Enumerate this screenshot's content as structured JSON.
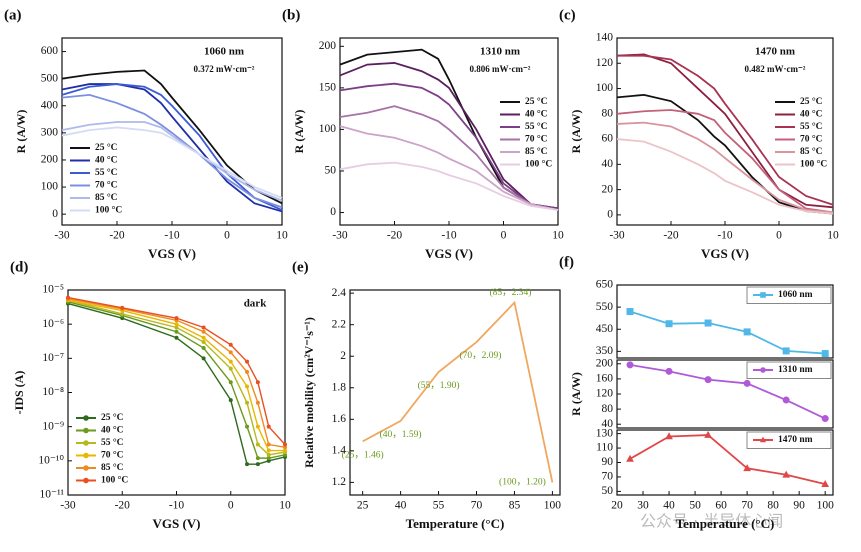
{
  "watermark": "公众号 · 半导体心闻",
  "chart_data": [
    {
      "type": "line",
      "panel": "(a)",
      "xlabel": "VGS (V)",
      "ylabel": "R (A/W)",
      "annotations": [
        "1060 nm",
        "0.372 mW·cm⁻²"
      ],
      "legend_loc": "lower left",
      "xlim": [
        -30,
        10
      ],
      "xticks": [
        -30,
        -20,
        -10,
        0,
        10
      ],
      "ylim": [
        -40,
        650
      ],
      "yticks": [
        0,
        100,
        200,
        300,
        400,
        500,
        600
      ],
      "x": [
        -30,
        -25,
        -20,
        -15,
        -12,
        -10,
        -5,
        0,
        5,
        10
      ],
      "series": [
        {
          "name": "25 °C",
          "color": "#111111",
          "values": [
            500,
            515,
            525,
            530,
            480,
            430,
            310,
            180,
            90,
            40
          ]
        },
        {
          "name": "40 °C",
          "color": "#1f2fa8",
          "values": [
            460,
            480,
            480,
            460,
            410,
            360,
            240,
            120,
            40,
            10
          ]
        },
        {
          "name": "55 °C",
          "color": "#3b5bd6",
          "values": [
            440,
            470,
            480,
            470,
            440,
            400,
            290,
            150,
            60,
            15
          ]
        },
        {
          "name": "70 °C",
          "color": "#7b8fe0",
          "values": [
            430,
            440,
            410,
            370,
            330,
            300,
            220,
            130,
            60,
            25
          ]
        },
        {
          "name": "85 °C",
          "color": "#aeb9ec",
          "values": [
            310,
            330,
            340,
            340,
            320,
            290,
            220,
            150,
            90,
            50
          ]
        },
        {
          "name": "100 °C",
          "color": "#d5dbf5",
          "values": [
            290,
            310,
            320,
            310,
            300,
            280,
            220,
            160,
            100,
            60
          ]
        }
      ]
    },
    {
      "type": "line",
      "panel": "(b)",
      "xlabel": "VGS (V)",
      "ylabel": "R (A/W)",
      "annotations": [
        "1310 nm",
        "0.806 mW·cm⁻²"
      ],
      "legend_loc": "center right",
      "xlim": [
        -30,
        10
      ],
      "xticks": [
        -30,
        -20,
        -10,
        0,
        10
      ],
      "ylim": [
        -15,
        210
      ],
      "yticks": [
        0,
        50,
        100,
        150,
        200
      ],
      "x": [
        -30,
        -25,
        -20,
        -15,
        -12,
        -10,
        -5,
        0,
        5,
        10
      ],
      "series": [
        {
          "name": "25 °C",
          "color": "#111111",
          "values": [
            178,
            190,
            193,
            196,
            185,
            160,
            90,
            30,
            10,
            5
          ]
        },
        {
          "name": "40 °C",
          "color": "#5a1f5e",
          "values": [
            165,
            178,
            180,
            170,
            160,
            150,
            100,
            40,
            10,
            5
          ]
        },
        {
          "name": "55 °C",
          "color": "#7b3f85",
          "values": [
            147,
            152,
            155,
            150,
            140,
            130,
            90,
            35,
            10,
            5
          ]
        },
        {
          "name": "70 °C",
          "color": "#a772a8",
          "values": [
            115,
            120,
            128,
            118,
            110,
            100,
            70,
            30,
            10,
            3
          ]
        },
        {
          "name": "85 °C",
          "color": "#cda3c8",
          "values": [
            104,
            95,
            90,
            80,
            72,
            65,
            50,
            25,
            10,
            3
          ]
        },
        {
          "name": "100 °C",
          "color": "#e6cde1",
          "values": [
            52,
            58,
            60,
            55,
            50,
            45,
            35,
            20,
            8,
            3
          ]
        }
      ]
    },
    {
      "type": "line",
      "panel": "(c)",
      "xlabel": "VGS (V)",
      "ylabel": "R (A/W)",
      "annotations": [
        "1470 nm",
        "0.482 mW·cm⁻²"
      ],
      "legend_loc": "center right",
      "xlim": [
        -30,
        10
      ],
      "xticks": [
        -30,
        -20,
        -10,
        0,
        10
      ],
      "ylim": [
        -8,
        140
      ],
      "yticks": [
        0,
        20,
        40,
        60,
        80,
        100,
        120,
        140
      ],
      "x": [
        -30,
        -25,
        -20,
        -15,
        -12,
        -10,
        -5,
        0,
        5,
        10
      ],
      "series": [
        {
          "name": "25 °C",
          "color": "#111111",
          "values": [
            93,
            95,
            90,
            75,
            62,
            55,
            30,
            10,
            3,
            1
          ]
        },
        {
          "name": "40 °C",
          "color": "#8b2040",
          "values": [
            126,
            127,
            120,
            100,
            88,
            80,
            50,
            20,
            8,
            6
          ]
        },
        {
          "name": "55 °C",
          "color": "#a83350",
          "values": [
            126,
            126,
            123,
            110,
            100,
            88,
            60,
            30,
            15,
            8
          ]
        },
        {
          "name": "70 °C",
          "color": "#c4607a",
          "values": [
            80,
            82,
            83,
            80,
            75,
            65,
            45,
            20,
            5,
            2
          ]
        },
        {
          "name": "85 °C",
          "color": "#d9949e",
          "values": [
            72,
            73,
            70,
            60,
            52,
            45,
            28,
            12,
            4,
            2
          ]
        },
        {
          "name": "100 °C",
          "color": "#ecc4c8",
          "values": [
            60,
            58,
            50,
            40,
            33,
            27,
            18,
            8,
            3,
            1
          ]
        }
      ]
    },
    {
      "type": "line",
      "panel": "(d)",
      "xlabel": "VGS (V)",
      "ylabel": "-IDS (A)",
      "annotations": [
        "dark"
      ],
      "legend_loc": "lower left",
      "ylog": true,
      "marker": "circle",
      "xlim": [
        -30,
        10
      ],
      "xticks": [
        -30,
        -20,
        -10,
        0,
        10
      ],
      "ylim": [
        1e-11,
        1e-05
      ],
      "yticks": [
        {
          "value": 1e-11,
          "label": "10⁻¹¹"
        },
        {
          "value": 1e-10,
          "label": "10⁻¹⁰"
        },
        {
          "value": 1e-09,
          "label": "10⁻⁹"
        },
        {
          "value": 1e-08,
          "label": "10⁻⁸"
        },
        {
          "value": 1e-07,
          "label": "10⁻⁷"
        },
        {
          "value": 1e-06,
          "label": "10⁻⁶"
        },
        {
          "value": 1e-05,
          "label": "10⁻⁵"
        }
      ],
      "x": [
        -30,
        -20,
        -10,
        -5,
        0,
        3,
        5,
        7,
        10
      ],
      "series": [
        {
          "name": "25 °C",
          "color": "#2e6b1e",
          "values": [
            4e-06,
            1.5e-06,
            4e-07,
            1e-07,
            6e-09,
            8e-11,
            8e-11,
            1e-10,
            1.3e-10
          ]
        },
        {
          "name": "40 °C",
          "color": "#6b9a1e",
          "values": [
            4.5e-06,
            1.8e-06,
            6e-07,
            2e-07,
            2e-08,
            1e-09,
            1.2e-10,
            1.2e-10,
            1.5e-10
          ]
        },
        {
          "name": "55 °C",
          "color": "#b8b81e",
          "values": [
            5e-06,
            2e-06,
            8e-07,
            3e-07,
            5e-08,
            5e-09,
            3e-10,
            1.5e-10,
            1.8e-10
          ]
        },
        {
          "name": "70 °C",
          "color": "#e8b800",
          "values": [
            5e-06,
            2.5e-06,
            1e-06,
            4e-07,
            8e-08,
            1.5e-08,
            1e-09,
            2e-10,
            2e-10
          ]
        },
        {
          "name": "85 °C",
          "color": "#f08a20",
          "values": [
            5.5e-06,
            2.8e-06,
            1.3e-06,
            6e-07,
            1.5e-07,
            4e-08,
            5e-09,
            3e-10,
            2.5e-10
          ]
        },
        {
          "name": "100 °C",
          "color": "#e85020",
          "values": [
            6e-06,
            3e-06,
            1.5e-06,
            8e-07,
            2.5e-07,
            8e-08,
            2e-08,
            1e-09,
            3e-10
          ]
        }
      ]
    },
    {
      "type": "line",
      "panel": "(e)",
      "xlabel": "Temperature (°C)",
      "ylabel": "Relative mobility (cm²V⁻¹s⁻¹)",
      "color": "#f0a860",
      "label_color": "#6a9a1e",
      "xlim": [
        20,
        103
      ],
      "xticks": [
        25,
        40,
        55,
        70,
        85,
        100
      ],
      "ylim": [
        1.12,
        2.42
      ],
      "yticks": [
        1.2,
        1.4,
        1.6,
        1.8,
        2.0,
        2.2,
        2.4
      ],
      "x": [
        25,
        40,
        55,
        70,
        85,
        100
      ],
      "values": [
        1.46,
        1.59,
        1.9,
        2.09,
        2.34,
        1.2
      ],
      "value_labels": [
        "(25，1.46)",
        "(40，1.59)",
        "(55，1.90)",
        "(70，2.09)",
        "(85，2.34)",
        "(100，1.20)"
      ]
    },
    {
      "type": "line",
      "panel": "(f)",
      "legend_loc": "upper right",
      "xlim": [
        20,
        103
      ],
      "ylim": [
        320,
        650
      ],
      "yticks": [
        350,
        450,
        550,
        650
      ],
      "x": [
        25,
        40,
        55,
        70,
        85,
        100
      ],
      "series": [
        {
          "name": "1060 nm",
          "color": "#4fb8e8",
          "marker": "square",
          "values": [
            530,
            475,
            478,
            438,
            352,
            340
          ]
        }
      ]
    },
    {
      "type": "line",
      "ylabel": "R (A/W)",
      "legend_loc": "upper right",
      "xlim": [
        20,
        103
      ],
      "ylim": [
        30,
        210
      ],
      "yticks": [
        40,
        80,
        120,
        160,
        200
      ],
      "x": [
        25,
        40,
        55,
        70,
        85,
        100
      ],
      "series": [
        {
          "name": "1310 nm",
          "color": "#b05ad8",
          "marker": "circle",
          "values": [
            197,
            180,
            158,
            148,
            104,
            55
          ]
        }
      ]
    },
    {
      "type": "line",
      "xlabel": "Temperature (°C)",
      "legend_loc": "upper right",
      "xlim": [
        20,
        103
      ],
      "xticks": [
        20,
        30,
        40,
        50,
        60,
        70,
        80,
        90,
        100
      ],
      "ylim": [
        45,
        135
      ],
      "yticks": [
        50,
        70,
        90,
        110,
        130
      ],
      "x": [
        25,
        40,
        55,
        70,
        85,
        100
      ],
      "series": [
        {
          "name": "1470 nm",
          "color": "#e04848",
          "marker": "triangle",
          "values": [
            95,
            126,
            128,
            82,
            73,
            60
          ]
        }
      ]
    }
  ]
}
